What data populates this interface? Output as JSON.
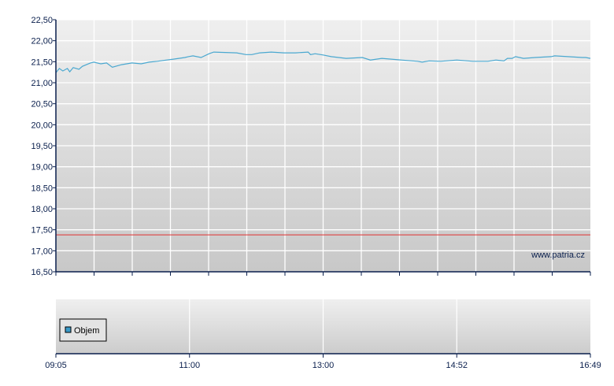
{
  "chart_data": [
    {
      "type": "line",
      "watermark": "www.patria.cz",
      "ylim": [
        16.5,
        22.5
      ],
      "xlim": [
        "09:05",
        "16:49"
      ],
      "yticks": [
        "16,50",
        "17,00",
        "17,50",
        "18,00",
        "18,50",
        "19,00",
        "19,50",
        "20,00",
        "20,50",
        "21,00",
        "21,50",
        "22,00",
        "22,50"
      ],
      "grid": true,
      "colors": {
        "price": "#4aa8d0",
        "reference": "#e03030",
        "axis": "#0a1f4d"
      },
      "reference_line": 17.38,
      "series": [
        {
          "x": [
            "09:05",
            "09:08",
            "09:11",
            "09:15",
            "09:17",
            "09:20",
            "09:25",
            "09:28",
            "09:35",
            "09:38",
            "09:44",
            "09:49",
            "09:54",
            "10:02",
            "10:11",
            "10:19",
            "10:26",
            "10:33",
            "10:41",
            "10:47",
            "10:57",
            "11:00",
            "11:04",
            "11:11",
            "11:18",
            "11:22",
            "11:42",
            "11:50",
            "11:55",
            "12:02",
            "12:12",
            "12:23",
            "12:33",
            "12:44",
            "12:46",
            "12:50",
            "12:57",
            "13:04",
            "13:17",
            "13:31",
            "13:38",
            "13:48",
            "14:05",
            "14:19",
            "14:23",
            "14:29",
            "14:39",
            "14:53",
            "15:07",
            "15:20",
            "15:27",
            "15:34",
            "15:37",
            "15:41",
            "15:44",
            "15:51",
            "16:01",
            "16:15",
            "16:18",
            "16:42",
            "16:45",
            "16:49"
          ],
          "values": [
            21.24,
            21.34,
            21.28,
            21.34,
            21.26,
            21.36,
            21.32,
            21.39,
            21.47,
            21.49,
            21.45,
            21.47,
            21.37,
            21.43,
            21.47,
            21.45,
            21.49,
            21.51,
            21.54,
            21.56,
            21.6,
            21.62,
            21.64,
            21.6,
            21.69,
            21.73,
            21.71,
            21.67,
            21.67,
            21.71,
            21.73,
            21.71,
            21.71,
            21.73,
            21.67,
            21.69,
            21.66,
            21.62,
            21.58,
            21.6,
            21.54,
            21.58,
            21.54,
            21.51,
            21.49,
            21.52,
            21.51,
            21.54,
            21.51,
            21.51,
            21.54,
            21.52,
            21.58,
            21.58,
            21.62,
            21.58,
            21.6,
            21.62,
            21.64,
            21.6,
            21.6,
            21.58
          ]
        }
      ]
    },
    {
      "type": "bar",
      "legend": [
        "Objem"
      ],
      "legend_placement": "left",
      "colors": {
        "volume": "#3a9ac8"
      },
      "xticks": [
        "09:05",
        "11:00",
        "13:00",
        "14:52",
        "16:49"
      ],
      "values": []
    }
  ]
}
